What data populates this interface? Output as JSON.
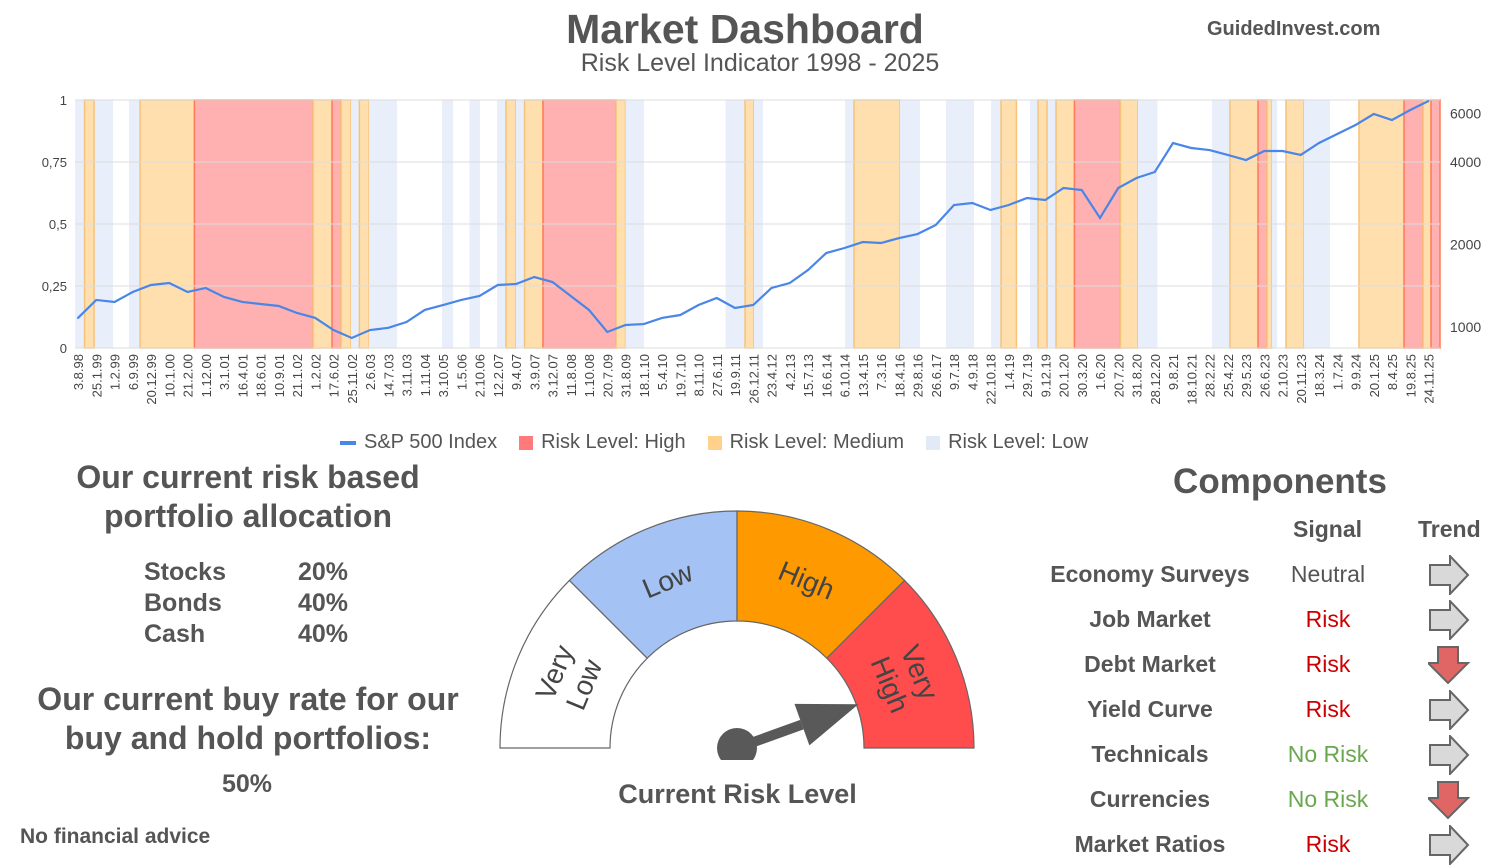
{
  "header": {
    "title": "Market Dashboard",
    "subtitle": "Risk Level Indicator 1998 - 2025",
    "site": "GuidedInvest.com"
  },
  "colors": {
    "sp500": "#4a86e8",
    "high": "#ff6d6d",
    "medium": "#ffd89b",
    "low": "#e8effb",
    "gauge_very_low": "#ffffff",
    "gauge_low": "#a4c2f4",
    "gauge_high": "#ff9900",
    "gauge_very_high": "#ff4d4d",
    "needle": "#595959",
    "risk": "#cc0000",
    "no_risk": "#6aa84f",
    "neutral": "#555555"
  },
  "chart_data": {
    "type": "line",
    "title": "Risk Level Indicator 1998 - 2025",
    "categories": [
      "3.8.98",
      "25.1.99",
      "1.2.99",
      "6.9.99",
      "20.12.99",
      "10.1.00",
      "21.2.00",
      "1.12.00",
      "3.1.01",
      "16.4.01",
      "18.6.01",
      "10.9.01",
      "21.1.02",
      "1.2.02",
      "17.6.02",
      "25.11.02",
      "2.6.03",
      "14.7.03",
      "3.11.03",
      "1.11.04",
      "3.10.05",
      "1.5.06",
      "2.10.06",
      "12.2.07",
      "9.4.07",
      "3.9.07",
      "3.12.07",
      "11.8.08",
      "1.10.08",
      "20.7.09",
      "31.8.09",
      "18.1.10",
      "5.4.10",
      "19.7.10",
      "8.11.10",
      "27.6.11",
      "19.9.11",
      "26.12.11",
      "23.4.12",
      "4.2.13",
      "15.7.13",
      "16.6.14",
      "6.10.14",
      "13.4.15",
      "7.3.16",
      "18.4.16",
      "29.8.16",
      "26.6.17",
      "9.7.18",
      "4.9.18",
      "22.10.18",
      "1.4.19",
      "29.7.19",
      "9.12.19",
      "20.1.20",
      "30.3.20",
      "1.6.20",
      "20.7.20",
      "31.8.20",
      "28.12.20",
      "9.8.21",
      "18.10.21",
      "28.2.22",
      "25.4.22",
      "29.5.23",
      "26.6.23",
      "2.10.23",
      "20.11.23",
      "18.3.24",
      "1.7.24",
      "9.9.24",
      "20.1.25",
      "8.4.25",
      "19.8.25",
      "24.11.25"
    ],
    "series": [
      {
        "name": "S&P 500 Index",
        "axis": "right",
        "scale": "log",
        "values": [
          1079,
          1255,
          1234,
          1342,
          1423,
          1447,
          1342,
          1388,
          1287,
          1234,
          1213,
          1193,
          1125,
          1079,
          975,
          912,
          975,
          993,
          1043,
          1154,
          1203,
          1255,
          1298,
          1423,
          1435,
          1522,
          1459,
          1298,
          1154,
          959,
          1017,
          1025,
          1079,
          1106,
          1203,
          1276,
          1173,
          1203,
          1388,
          1447,
          1614,
          1862,
          1942,
          2042,
          2025,
          2112,
          2184,
          2356,
          2787,
          2835,
          2673,
          2787,
          2956,
          2906,
          3215,
          3162,
          2499,
          3215,
          3497,
          3678,
          4692,
          4500,
          4423,
          4243,
          4067,
          4387,
          4387,
          4243,
          4692,
          5061,
          5457,
          5987,
          5692,
          6190,
          6677
        ]
      }
    ],
    "risk_bands_category_index_units": [
      {
        "level": "low",
        "start": -0.16,
        "end": 1.92
      },
      {
        "level": "medium",
        "start": 0.36,
        "end": 0.88
      },
      {
        "level": "low",
        "start": 2.79,
        "end": 3.4
      },
      {
        "level": "medium",
        "start": 3.4,
        "end": 6.38
      },
      {
        "level": "high",
        "start": 6.38,
        "end": 12.88
      },
      {
        "level": "medium",
        "start": 12.88,
        "end": 13.92
      },
      {
        "level": "high",
        "start": 13.92,
        "end": 14.41
      },
      {
        "level": "medium",
        "start": 14.41,
        "end": 14.96
      },
      {
        "level": "low",
        "start": 14.96,
        "end": 15.42
      },
      {
        "level": "medium",
        "start": 15.42,
        "end": 15.95
      },
      {
        "level": "low",
        "start": 15.95,
        "end": 17.48
      },
      {
        "level": "low",
        "start": 19.95,
        "end": 20.55
      },
      {
        "level": "low",
        "start": 21.45,
        "end": 22.03
      },
      {
        "level": "low",
        "start": 22.96,
        "end": 23.45
      },
      {
        "level": "medium",
        "start": 23.45,
        "end": 24.0
      },
      {
        "level": "low",
        "start": 24.0,
        "end": 24.44
      },
      {
        "level": "medium",
        "start": 24.47,
        "end": 25.48
      },
      {
        "level": "high",
        "start": 25.48,
        "end": 29.48
      },
      {
        "level": "medium",
        "start": 29.48,
        "end": 30.0
      },
      {
        "level": "low",
        "start": 30.0,
        "end": 31.01
      },
      {
        "level": "low",
        "start": 35.48,
        "end": 36.55
      },
      {
        "level": "medium",
        "start": 36.55,
        "end": 37.04
      },
      {
        "level": "low",
        "start": 37.04,
        "end": 37.53
      },
      {
        "level": "low",
        "start": 42.03,
        "end": 42.52
      },
      {
        "level": "medium",
        "start": 42.52,
        "end": 45.04
      },
      {
        "level": "low",
        "start": 45.04,
        "end": 46.14
      },
      {
        "level": "low",
        "start": 47.56,
        "end": 49.1
      },
      {
        "level": "low",
        "start": 50.03,
        "end": 50.58
      },
      {
        "level": "medium",
        "start": 50.58,
        "end": 51.42
      },
      {
        "level": "low",
        "start": 52.16,
        "end": 52.55
      },
      {
        "level": "medium",
        "start": 52.6,
        "end": 53.1
      },
      {
        "level": "low",
        "start": 53.15,
        "end": 53.59
      },
      {
        "level": "medium",
        "start": 53.59,
        "end": 54.6
      },
      {
        "level": "high",
        "start": 54.6,
        "end": 57.12
      },
      {
        "level": "medium",
        "start": 57.12,
        "end": 58.08
      },
      {
        "level": "low",
        "start": 58.08,
        "end": 59.15
      },
      {
        "level": "low",
        "start": 62.14,
        "end": 63.12
      },
      {
        "level": "medium",
        "start": 63.12,
        "end": 64.66
      },
      {
        "level": "high",
        "start": 64.66,
        "end": 65.15
      },
      {
        "level": "medium",
        "start": 65.15,
        "end": 65.42
      },
      {
        "level": "low",
        "start": 65.42,
        "end": 65.7
      },
      {
        "level": "medium",
        "start": 66.19,
        "end": 67.18
      },
      {
        "level": "low",
        "start": 67.18,
        "end": 68.6
      },
      {
        "level": "medium",
        "start": 70.19,
        "end": 72.66
      },
      {
        "level": "high",
        "start": 72.66,
        "end": 73.7
      },
      {
        "level": "medium",
        "start": 73.7,
        "end": 74.14
      },
      {
        "level": "high",
        "start": 74.14,
        "end": 74.63
      }
    ],
    "left_axis": {
      "ticks": [
        "0",
        "0,25",
        "0,5",
        "0,75",
        "1"
      ],
      "tick_values": [
        0,
        0.25,
        0.5,
        0.75,
        1
      ],
      "ylim": [
        0,
        1
      ]
    },
    "right_axis": {
      "ticks": [
        "1000",
        "2000",
        "4000",
        "6000"
      ],
      "tick_values": [
        1000,
        2000,
        4000,
        6000
      ],
      "scale": "log"
    },
    "legend": [
      "S&P 500 Index",
      "Risk Level: High",
      "Risk Level: Medium",
      "Risk Level: Low"
    ],
    "legend_position": "bottom",
    "grid": true
  },
  "allocation": {
    "heading": "Our current risk based portfolio allocation",
    "items": [
      {
        "label": "Stocks",
        "value": "20%"
      },
      {
        "label": "Bonds",
        "value": "40%"
      },
      {
        "label": "Cash",
        "value": "40%"
      }
    ],
    "buy_rate_heading": "Our current buy rate for our buy and hold portfolios:",
    "buy_rate": "50%",
    "disclaimer": "No financial advice"
  },
  "gauge": {
    "segments": [
      "Very Low",
      "Low",
      "High",
      "Very High"
    ],
    "segments_lines": [
      [
        "Very",
        "Low"
      ],
      [
        "Low"
      ],
      [
        "High"
      ],
      [
        "Very",
        "High"
      ]
    ],
    "value_fraction": 0.89,
    "label": "Current Risk Level"
  },
  "components": {
    "title": "Components",
    "signal_header": "Signal",
    "trend_header": "Trend",
    "rows": [
      {
        "name": "Economy Surveys",
        "signal": "Neutral",
        "signal_type": "neutral",
        "trend": "sideways"
      },
      {
        "name": "Job Market",
        "signal": "Risk",
        "signal_type": "risk",
        "trend": "sideways"
      },
      {
        "name": "Debt Market",
        "signal": "Risk",
        "signal_type": "risk",
        "trend": "down"
      },
      {
        "name": "Yield Curve",
        "signal": "Risk",
        "signal_type": "risk",
        "trend": "sideways"
      },
      {
        "name": "Technicals",
        "signal": "No Risk",
        "signal_type": "no_risk",
        "trend": "sideways"
      },
      {
        "name": "Currencies",
        "signal": "No Risk",
        "signal_type": "no_risk",
        "trend": "down"
      },
      {
        "name": "Market Ratios",
        "signal": "Risk",
        "signal_type": "risk",
        "trend": "sideways"
      }
    ]
  }
}
